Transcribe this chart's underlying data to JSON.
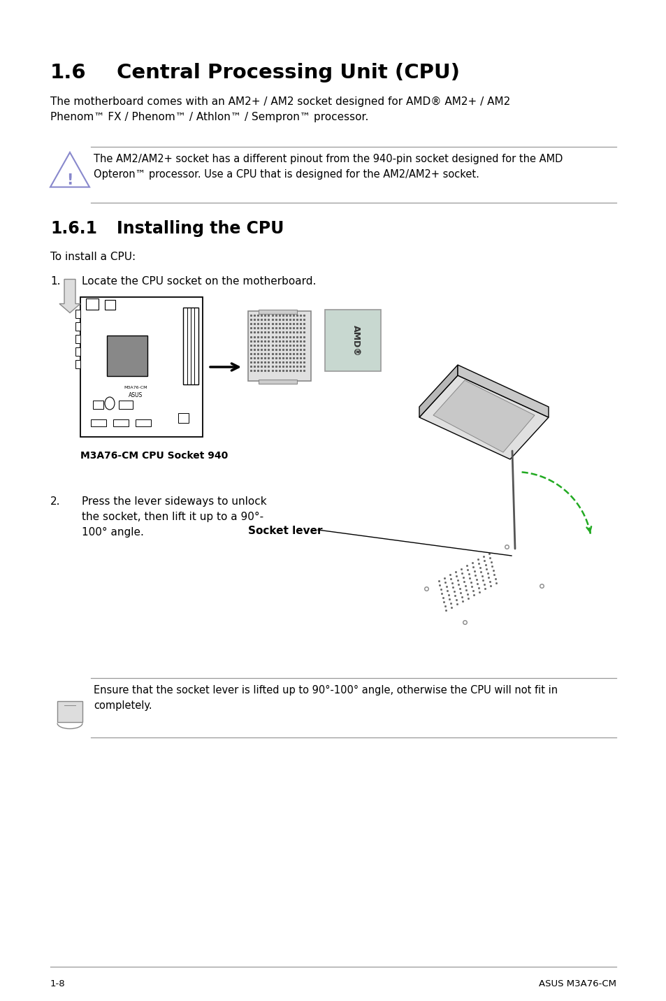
{
  "bg_color": "#ffffff",
  "title_section": "1.6",
  "title_text": "Central Processing Unit (CPU)",
  "body_text1": "The motherboard comes with an AM2+ / AM2 socket designed for AMD® AM2+ / AM2\nPhenom™ FX / Phenom™ / Athlon™ / Sempron™ processor.",
  "warning_text": "The AM2/AM2+ socket has a different pinout from the 940-pin socket designed for the AMD\nOpteron™ processor. Use a CPU that is designed for the AM2/AM2+ socket.",
  "subsection": "1.6.1",
  "subsection_title": "Installing the CPU",
  "install_intro": "To install a CPU:",
  "step1_num": "1.",
  "step1_text": "Locate the CPU socket on the motherboard.",
  "caption1": "M3A76-CM CPU Socket 940",
  "step2_num": "2.",
  "step2_text": "Press the lever sideways to unlock\nthe socket, then lift it up to a 90°-\n100° angle.",
  "socket_lever_label": "Socket lever",
  "note_text": "Ensure that the socket lever is lifted up to 90°-100° angle, otherwise the CPU will not fit in\ncompletely.",
  "footer_left": "1-8",
  "footer_right": "ASUS M3A76-CM"
}
